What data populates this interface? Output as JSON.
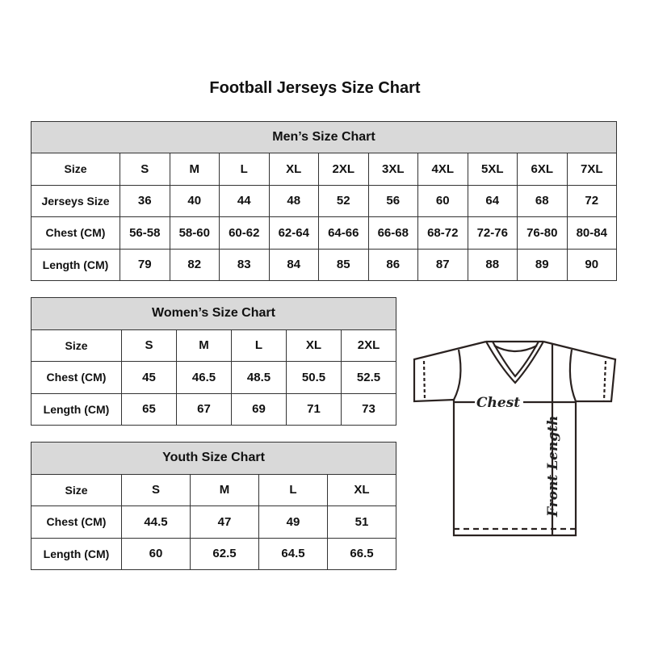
{
  "title": "Football Jerseys Size Chart",
  "men": {
    "heading": "Men’s Size Chart",
    "rows": [
      [
        "Size",
        "S",
        "M",
        "L",
        "XL",
        "2XL",
        "3XL",
        "4XL",
        "5XL",
        "6XL",
        "7XL"
      ],
      [
        "Jerseys Size",
        "36",
        "40",
        "44",
        "48",
        "52",
        "56",
        "60",
        "64",
        "68",
        "72"
      ],
      [
        "Chest (CM)",
        "56-58",
        "58-60",
        "60-62",
        "62-64",
        "64-66",
        "66-68",
        "68-72",
        "72-76",
        "76-80",
        "80-84"
      ],
      [
        "Length (CM)",
        "79",
        "82",
        "83",
        "84",
        "85",
        "86",
        "87",
        "88",
        "89",
        "90"
      ]
    ]
  },
  "women": {
    "heading": "Women’s Size Chart",
    "rows": [
      [
        "Size",
        "S",
        "M",
        "L",
        "XL",
        "2XL"
      ],
      [
        "Chest (CM)",
        "45",
        "46.5",
        "48.5",
        "50.5",
        "52.5"
      ],
      [
        "Length (CM)",
        "65",
        "67",
        "69",
        "71",
        "73"
      ]
    ]
  },
  "youth": {
    "heading": "Youth Size Chart",
    "rows": [
      [
        "Size",
        "S",
        "M",
        "L",
        "XL"
      ],
      [
        "Chest (CM)",
        "44.5",
        "47",
        "49",
        "51"
      ],
      [
        "Length (CM)",
        "60",
        "62.5",
        "64.5",
        "66.5"
      ]
    ]
  },
  "diagram": {
    "chest_label": "Chest",
    "length_label": "Front Length"
  },
  "colors": {
    "header_bg": "#d9d9d9",
    "border": "#333333"
  }
}
